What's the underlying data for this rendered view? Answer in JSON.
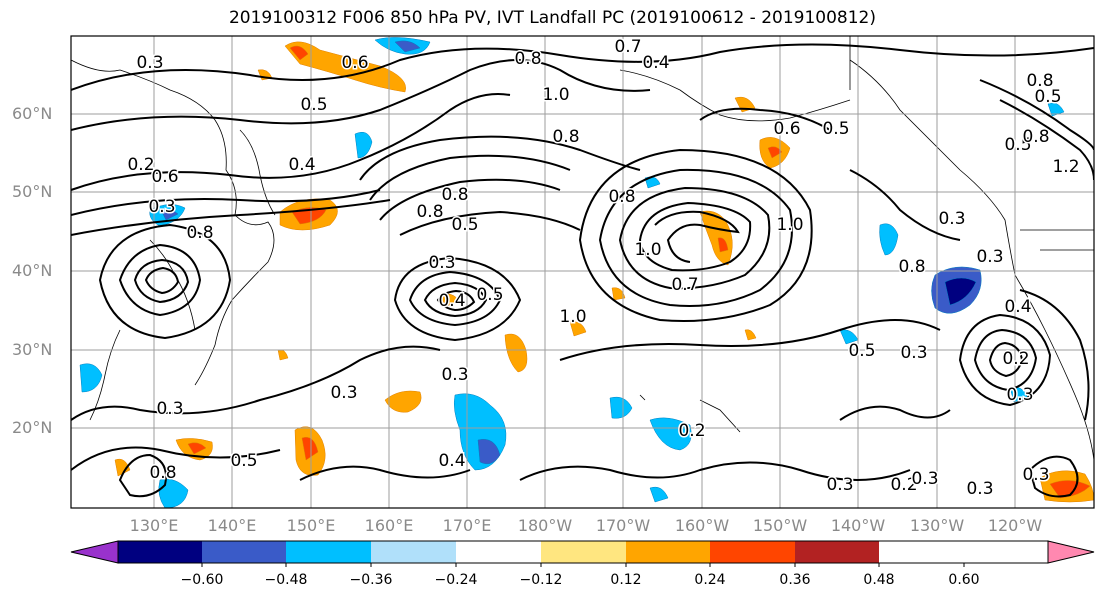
{
  "title": "2019100312 F006 850 hPa PV, IVT Landfall PC (2019100612 - 2019100812)",
  "lat_labels": [
    "60°N",
    "50°N",
    "40°N",
    "30°N",
    "20°N"
  ],
  "lon_labels": [
    "130°E",
    "140°E",
    "150°E",
    "160°E",
    "170°E",
    "180°W",
    "170°W",
    "160°W",
    "150°W",
    "140°W",
    "130°W",
    "120°W"
  ],
  "colorbar": {
    "ticks": [
      "−0.60",
      "−0.48",
      "−0.36",
      "−0.24",
      "−0.12",
      "0.12",
      "0.24",
      "0.36",
      "0.48",
      "0.60"
    ],
    "colors": [
      "#9932cc",
      "#000080",
      "#3a5bc8",
      "#00bfff",
      "#b0e0fa",
      "#ffffff",
      "#ffe680",
      "#ffa500",
      "#ff4500",
      "#b22222",
      "#ff88b0"
    ]
  },
  "contour_labels": [
    "0.3",
    "0.6",
    "0.7",
    "0.4",
    "0.8",
    "1.0",
    "0.5",
    "0.6",
    "0.5",
    "0.8",
    "0.8",
    "0.8",
    "0.3",
    "0.5",
    "0.4",
    "0.2",
    "0.6",
    "0.8",
    "0.8",
    "1.0",
    "0.7",
    "1.0",
    "0.8",
    "0.3",
    "0.5",
    "0.3",
    "0.5",
    "0.4",
    "1.0",
    "0.3",
    "0.3",
    "0.3",
    "0.8",
    "0.5",
    "0.4",
    "0.3",
    "0.2",
    "0.3",
    "0.3",
    "0.3",
    "0.2",
    "0.3",
    "0.3",
    "0.4",
    "0.2",
    "0.3",
    "0.5",
    "0.8",
    "0.5",
    "0.8",
    "1.2"
  ]
}
